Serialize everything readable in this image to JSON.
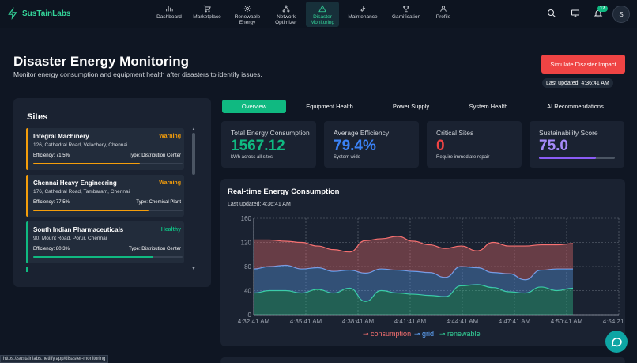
{
  "brand": {
    "name": "SusTainLabs",
    "icon": "lightning-icon"
  },
  "nav": {
    "items": [
      {
        "label": "Dashboard",
        "icon": "bar-chart-icon"
      },
      {
        "label": "Marketplace",
        "icon": "cart-icon"
      },
      {
        "label": "Renewable Energy",
        "icon": "sun-icon"
      },
      {
        "label": "Network Optimizer",
        "icon": "network-icon"
      },
      {
        "label": "Disaster Monitoring",
        "icon": "warning-triangle-icon",
        "active": true
      },
      {
        "label": "Maintenance",
        "icon": "wrench-icon"
      },
      {
        "label": "Gamification",
        "icon": "trophy-icon"
      },
      {
        "label": "Profile",
        "icon": "user-icon"
      }
    ],
    "notification_count": "17",
    "avatar_initial": "S"
  },
  "header": {
    "title": "Disaster Energy Monitoring",
    "subtitle": "Monitor energy consumption and equipment health after disasters to identify issues.",
    "simulate_button": "Simulate Disaster Impact",
    "last_updated": "Last updated: 4:36:41 AM"
  },
  "sites": {
    "title": "Sites",
    "items": [
      {
        "name": "Integral Machinery",
        "status": "Warning",
        "address": "126, Cathedral Road, Velachery, Chennai",
        "efficiency_label": "Efficiency: 71.5%",
        "efficiency": 0.715,
        "type": "Type: Distribution Center",
        "color": "#f59e0b"
      },
      {
        "name": "Chennai Heavy Engineering",
        "status": "Warning",
        "address": "176, Cathedral Road, Tambaram, Chennai",
        "efficiency_label": "Efficiency: 77.5%",
        "efficiency": 0.775,
        "type": "Type: Chemical Plant",
        "color": "#f59e0b"
      },
      {
        "name": "South Indian Pharmaceuticals",
        "status": "Healthy",
        "address": "90, Mount Road, Porur, Chennai",
        "efficiency_label": "Efficiency: 80.3%",
        "efficiency": 0.803,
        "type": "Type: Distribution Center",
        "color": "#10b981"
      }
    ]
  },
  "tabs": [
    "Overview",
    "Equipment Health",
    "Power Supply",
    "System Health",
    "AI Recommendations"
  ],
  "stats": [
    {
      "label": "Total Energy Consumption",
      "value": "1567.12",
      "sub": "kWh across all sites",
      "color": "#10b981"
    },
    {
      "label": "Average Efficiency",
      "value": "79.4%",
      "sub": "System wide",
      "color": "#3b82f6"
    },
    {
      "label": "Critical Sites",
      "value": "0",
      "sub": "Require immediate repair",
      "color": "#ef4444"
    },
    {
      "label": "Sustainability Score",
      "value": "75.0",
      "progress": 0.75,
      "color": "#a78bfa"
    }
  ],
  "chart": {
    "title": "Real-time Energy Consumption",
    "updated": "Last updated: 4:36:41 AM",
    "status_url": "https://sustainlabs.netlify.app/disaster-monitoring"
  },
  "chart_data": {
    "type": "area",
    "stacked": true,
    "x_tick_labels": [
      "4:32:41 AM",
      "4:35:41 AM",
      "4:38:41 AM",
      "4:41:41 AM",
      "4:44:41 AM",
      "4:47:41 AM",
      "4:50:41 AM",
      "4:54:21 AM"
    ],
    "x_minutes": [
      0,
      1,
      2,
      3,
      4,
      5,
      6,
      7,
      8,
      9,
      10,
      11,
      12,
      13,
      14,
      15,
      16,
      17,
      18,
      19,
      20
    ],
    "ylim": [
      0,
      160
    ],
    "y_ticks": [
      0,
      40,
      80,
      120,
      160
    ],
    "grid": true,
    "legend_position": "bottom",
    "series": [
      {
        "name": "renewable",
        "color": "#34d399",
        "values": [
          36,
          40,
          40,
          36,
          42,
          36,
          44,
          22,
          40,
          36,
          34,
          32,
          30,
          48,
          50,
          45,
          38,
          36,
          46,
          40,
          44
        ]
      },
      {
        "name": "grid",
        "color": "#60a5fa",
        "values": [
          40,
          40,
          42,
          40,
          36,
          36,
          30,
          47,
          36,
          38,
          38,
          38,
          32,
          32,
          28,
          25,
          30,
          22,
          28,
          36,
          32
        ]
      },
      {
        "name": "consumption",
        "color": "#f87171",
        "values": [
          48,
          44,
          40,
          44,
          36,
          36,
          30,
          54,
          50,
          56,
          50,
          46,
          48,
          34,
          28,
          50,
          46,
          56,
          42,
          40,
          42
        ]
      }
    ]
  }
}
